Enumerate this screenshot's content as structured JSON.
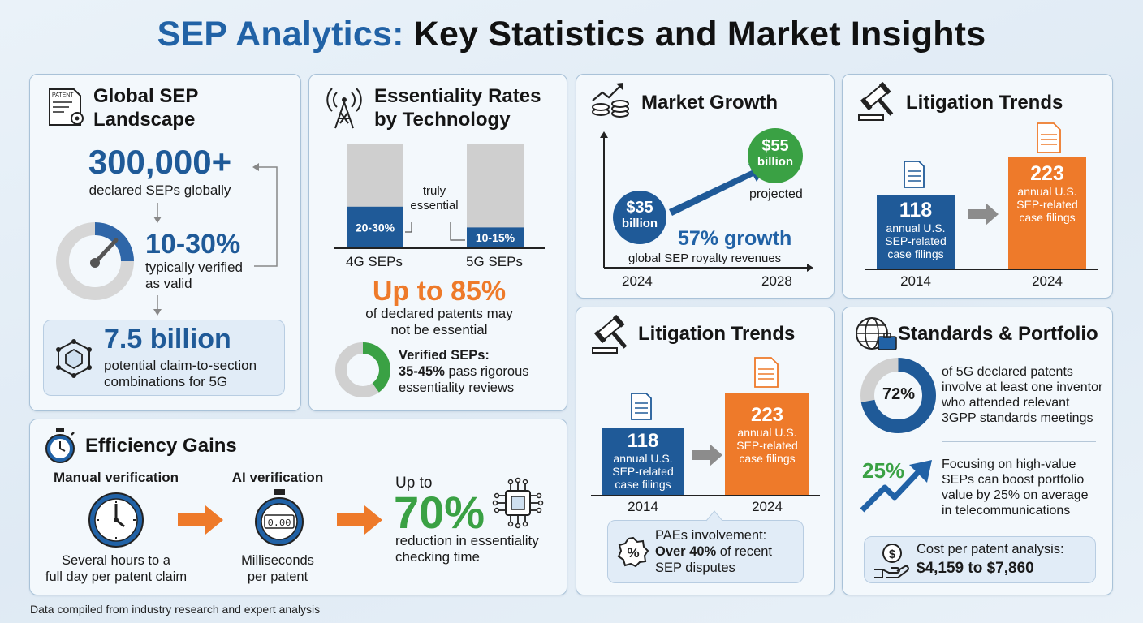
{
  "title": {
    "part1": "SEP Analytics:",
    "part2": "Key Statistics and Market Insights"
  },
  "landscape": {
    "title_l1": "Global SEP",
    "title_l2": "Landscape",
    "stat": "300,000+",
    "stat_label": "declared SEPs globally",
    "gauge_value": "10-30%",
    "gauge_label_l1": "typically verified",
    "gauge_label_l2": "as valid",
    "combo_value": "7.5 billion",
    "combo_l1": "potential claim-to-section",
    "combo_l2": "combinations for 5G",
    "patent_doc_text": "PATENT"
  },
  "essentiality": {
    "title_l1": "Essentiality Rates",
    "title_l2": "by Technology",
    "bars": [
      {
        "label": "4G SEPs",
        "value_label": "20-30%",
        "fill": 0.25
      },
      {
        "label": "5G SEPs",
        "value_label": "10-15%",
        "fill": 0.125
      }
    ],
    "annotation_l1": "truly",
    "annotation_l2": "essential",
    "highlight": "Up to 85%",
    "highlight_l1": "of declared patents may",
    "highlight_l2": "not be essential",
    "verified_title": "Verified SEPs:",
    "verified_value": "35-45%",
    "verified_l1": " pass rigorous",
    "verified_l2": "essentiality reviews",
    "verified_fraction": 0.4
  },
  "market": {
    "title": "Market Growth",
    "start_value": "$35",
    "start_unit": "billion",
    "end_value": "$55",
    "end_unit": "billion",
    "projected": "projected",
    "growth": "57% growth",
    "growth_label": "global SEP royalty revenues",
    "x_start": "2024",
    "x_end": "2028"
  },
  "litigation": {
    "title": "Litigation Trends",
    "before_value": "118",
    "before_l1": "annual U.S.",
    "before_l2": "SEP-related",
    "before_l3": "case filings",
    "after_value": "223",
    "after_l1": "annual U.S.",
    "after_l2": "SEP-related",
    "after_l3": "case filings",
    "year_before": "2014",
    "year_after": "2024",
    "pae_l1": "PAEs involvement:",
    "pae_bold": "Over 40%",
    "pae_rest": " of recent",
    "pae_l3": "SEP disputes"
  },
  "standards": {
    "title": "Standards & Portfolio",
    "donut_value": "72%",
    "donut_fraction": 0.72,
    "donut_l1": "of 5G declared patents",
    "donut_l2": "involve at least one inventor",
    "donut_l3": "who attended relevant",
    "donut_l4": "3GPP standards meetings",
    "boost_value": "25%",
    "boost_l1": "Focusing on high-value",
    "boost_l2": "SEPs can boost portfolio",
    "boost_l3": "value by 25% on average",
    "boost_l4": "in telecommunications",
    "cost_label": "Cost per patent analysis:",
    "cost_value": "$4,159 to $7,860"
  },
  "efficiency": {
    "title": "Efficiency Gains",
    "manual_title": "Manual verification",
    "manual_l1": "Several hours to a",
    "manual_l2": "full day per patent claim",
    "ai_title": "AI verification",
    "ai_display": "0.00",
    "ai_l1": "Milliseconds",
    "ai_l2": "per patent",
    "result_pre": "Up to",
    "result_value": "70%",
    "result_l1": "reduction in essentiality",
    "result_l2": "checking time"
  },
  "footer": "Data compiled from industry research and expert analysis",
  "colors": {
    "blue": "#2162a6",
    "dark_blue": "#1f5a98",
    "orange": "#ee7a2a",
    "green": "#3aa144",
    "gray": "#cfcfcf"
  }
}
